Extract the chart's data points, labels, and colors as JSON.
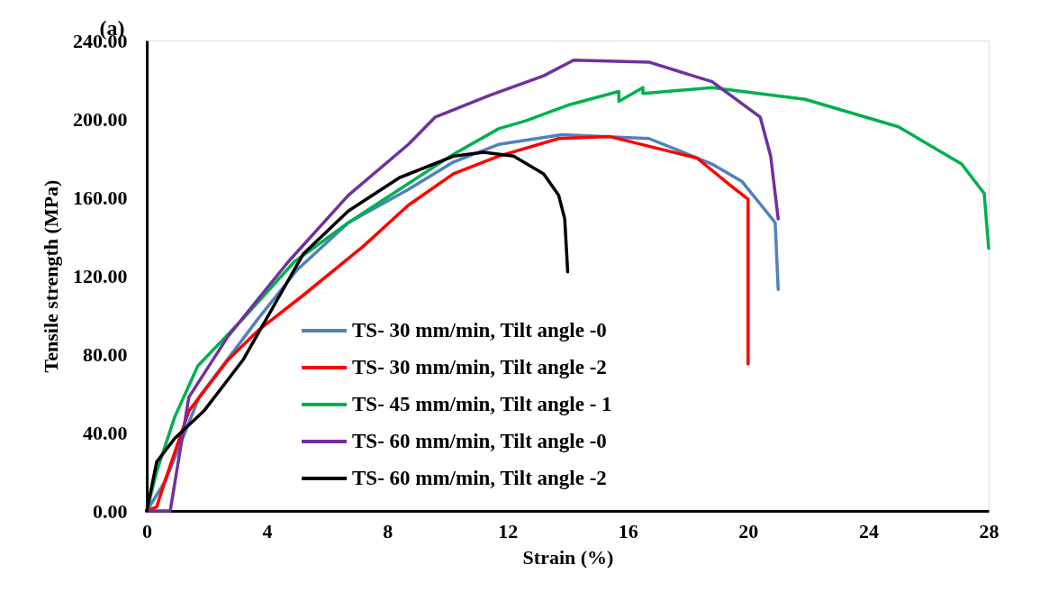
{
  "chart_data": {
    "type": "line",
    "annotations": [
      "(a)"
    ],
    "xlabel": "Strain (%)",
    "ylabel": "Tensile strength (MPa)",
    "xlim": [
      0,
      28
    ],
    "xticks": [
      0,
      4,
      8,
      12,
      16,
      20,
      24,
      28
    ],
    "ylim": [
      0,
      240
    ],
    "yticks": [
      {
        "value": 0,
        "label": "0.00"
      },
      {
        "value": 40,
        "label": "40.00"
      },
      {
        "value": 80,
        "label": "80.00"
      },
      {
        "value": 120,
        "label": "120.00"
      },
      {
        "value": 160,
        "label": "160.00"
      },
      {
        "value": 200,
        "label": "200.00"
      },
      {
        "value": 240,
        "label": "240.00"
      }
    ],
    "grid": false,
    "legend": "bottom",
    "marker": "none",
    "line_style": "solid",
    "series": [
      {
        "name": "TS- 30 mm/min, Tilt angle -0",
        "color": "#4f81bd",
        "x": [
          0,
          0.63,
          1.74,
          3.7,
          5.0,
          6.7,
          8.7,
          10.2,
          11.7,
          13.8,
          16.7,
          18.8,
          19.8,
          20.75,
          20.9,
          21.0
        ],
        "values": [
          0,
          15.6,
          58,
          98,
          123,
          147,
          164,
          178,
          187,
          192,
          190,
          177,
          168,
          150,
          147,
          113
        ]
      },
      {
        "name": "TS- 30 mm/min, Tilt angle -2",
        "color": "#ff0000",
        "x": [
          0,
          0.33,
          0.6,
          1.4,
          2.7,
          3.7,
          5.2,
          7.2,
          8.7,
          10.2,
          11.7,
          13.7,
          15.4,
          18.3,
          19.5,
          20.0,
          20.0
        ],
        "values": [
          0,
          2,
          15,
          51,
          77,
          92,
          110,
          135,
          156,
          172,
          181,
          190,
          191,
          180,
          165,
          159,
          75
        ]
      },
      {
        "name": "TS- 45 mm/min, Tilt angle - 1",
        "color": "#00b050",
        "x": [
          0,
          0.33,
          0.93,
          1.7,
          3.2,
          4.9,
          6.7,
          8.7,
          10.2,
          11.7,
          12.6,
          14.0,
          15.7,
          15.7,
          16.5,
          16.5,
          18.8,
          21.9,
          25.0,
          27.1,
          27.85,
          28.0
        ],
        "values": [
          0,
          20,
          48,
          74,
          98,
          127,
          147,
          167,
          182,
          195,
          199,
          207,
          214,
          209,
          216,
          213,
          216,
          210,
          196,
          177,
          162,
          134
        ]
      },
      {
        "name": "TS- 60 mm/min, Tilt angle -0",
        "color": "#7030a0",
        "x": [
          0,
          0.78,
          1.4,
          2.7,
          4.7,
          6.7,
          8.7,
          9.6,
          11.4,
          13.2,
          14.2,
          16.7,
          18.8,
          20.4,
          20.75,
          21.0
        ],
        "values": [
          0,
          0,
          58,
          89,
          127,
          161,
          187,
          201,
          212,
          222,
          230,
          229,
          219,
          201,
          181,
          149
        ]
      },
      {
        "name": "TS- 60 mm/min, Tilt angle -2",
        "color": "#000000",
        "x": [
          0,
          0.33,
          0.93,
          1.9,
          3.2,
          4.2,
          5.2,
          6.7,
          8.4,
          10.2,
          11.2,
          12.2,
          13.2,
          13.7,
          13.9,
          14.0
        ],
        "values": [
          0,
          25,
          37,
          51,
          77,
          104,
          131,
          153,
          170,
          181,
          183,
          181,
          172,
          161,
          149,
          122
        ]
      }
    ]
  }
}
